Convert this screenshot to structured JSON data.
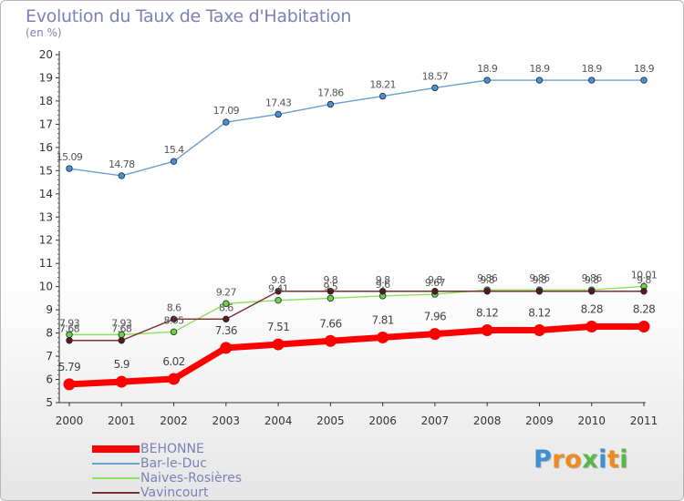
{
  "title": "Evolution du Taux de Taxe d'Habitation",
  "unit": "(en %)",
  "brand": {
    "text": "Proxiti",
    "letters": [
      "P",
      "r",
      "o",
      "x",
      "i",
      "t",
      "i"
    ],
    "colors": [
      "#3d8fd6",
      "#f08a1c",
      "#f08a1c",
      "#56b848",
      "#3d8fd6",
      "#f08a1c",
      "#56b848"
    ]
  },
  "chart_data": {
    "type": "line",
    "x": [
      "2000",
      "2001",
      "2002",
      "2003",
      "2004",
      "2005",
      "2006",
      "2007",
      "2008",
      "2009",
      "2010",
      "2011"
    ],
    "ylim": [
      5,
      20
    ],
    "yticks": [
      "5",
      "6",
      "7",
      "8",
      "9",
      "10",
      "11",
      "12",
      "13",
      "14",
      "15",
      "16",
      "17",
      "18",
      "19",
      "20"
    ],
    "grid": false,
    "legend_position": "bottom-left",
    "series": [
      {
        "name": "BEHONNE",
        "color": "#ff0000",
        "values": [
          5.79,
          5.9,
          6.02,
          7.36,
          7.51,
          7.66,
          7.81,
          7.96,
          8.12,
          8.12,
          8.28,
          8.28
        ],
        "labels": [
          "5.79",
          "5.9",
          "6.02",
          "7.36",
          "7.51",
          "7.66",
          "7.81",
          "7.96",
          "8.12",
          "8.12",
          "8.28",
          "8.28"
        ]
      },
      {
        "name": "Bar-le-Duc",
        "color": "#6a9fd4",
        "values": [
          15.09,
          14.78,
          15.4,
          17.09,
          17.43,
          17.86,
          18.21,
          18.57,
          18.9,
          18.9,
          18.9,
          18.9
        ],
        "labels": [
          "15.09",
          "14.78",
          "15.4",
          "17.09",
          "17.43",
          "17.86",
          "18.21",
          "18.57",
          "18.9",
          "18.9",
          "18.9",
          "18.9"
        ]
      },
      {
        "name": "Naives-Rosières",
        "color": "#90e060",
        "values": [
          7.93,
          7.93,
          8.05,
          9.27,
          9.41,
          9.5,
          9.6,
          9.67,
          9.86,
          9.86,
          9.86,
          10.01
        ],
        "labels": [
          "7.93",
          "7.93",
          "8.05",
          "9.27",
          "9.41",
          "9.5",
          "9.6",
          "9.67",
          "9.86",
          "9.86",
          "9.86",
          "10.01"
        ]
      },
      {
        "name": "Vavincourt",
        "color": "#7a3030",
        "values": [
          7.68,
          7.68,
          8.6,
          8.6,
          9.8,
          9.8,
          9.8,
          9.8,
          9.8,
          9.8,
          9.8,
          9.8
        ],
        "labels": [
          "7.68",
          "7.68",
          "8.6",
          "8.6",
          "9.8",
          "9.8",
          "9.8",
          "9.8",
          "9.8",
          "9.8",
          "9.8",
          "9.8"
        ]
      }
    ]
  }
}
